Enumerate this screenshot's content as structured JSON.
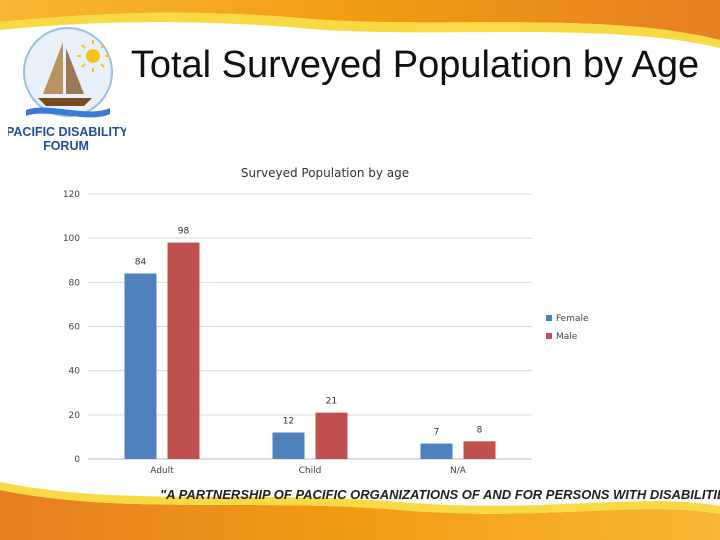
{
  "slide": {
    "title": "Total Surveyed Population by Age",
    "logo_line1": "PACIFIC DISABILITY",
    "logo_line2": "FORUM",
    "tagline": "\"A PARTNERSHIP OF PACIFIC ORGANIZATIONS OF AND FOR PERSONS WITH DISABILITIES\""
  },
  "colors": {
    "female": "#4f81bd",
    "male": "#c0504d",
    "wave_orange": "#f39c12",
    "wave_yellow": "#f9d423",
    "logo_blue": "#1f4e9c",
    "logo_red": "#c0392b"
  },
  "chart_data": {
    "type": "bar",
    "title": "Surveyed Population by age",
    "categories": [
      "Adult",
      "Child",
      "N/A"
    ],
    "series": [
      {
        "name": "Female",
        "values": [
          84,
          12,
          7
        ]
      },
      {
        "name": "Male",
        "values": [
          98,
          21,
          8
        ]
      }
    ],
    "ylim": [
      0,
      120
    ],
    "yticks": [
      0,
      20,
      40,
      60,
      80,
      100,
      120
    ],
    "grid": true,
    "legend": "right"
  }
}
